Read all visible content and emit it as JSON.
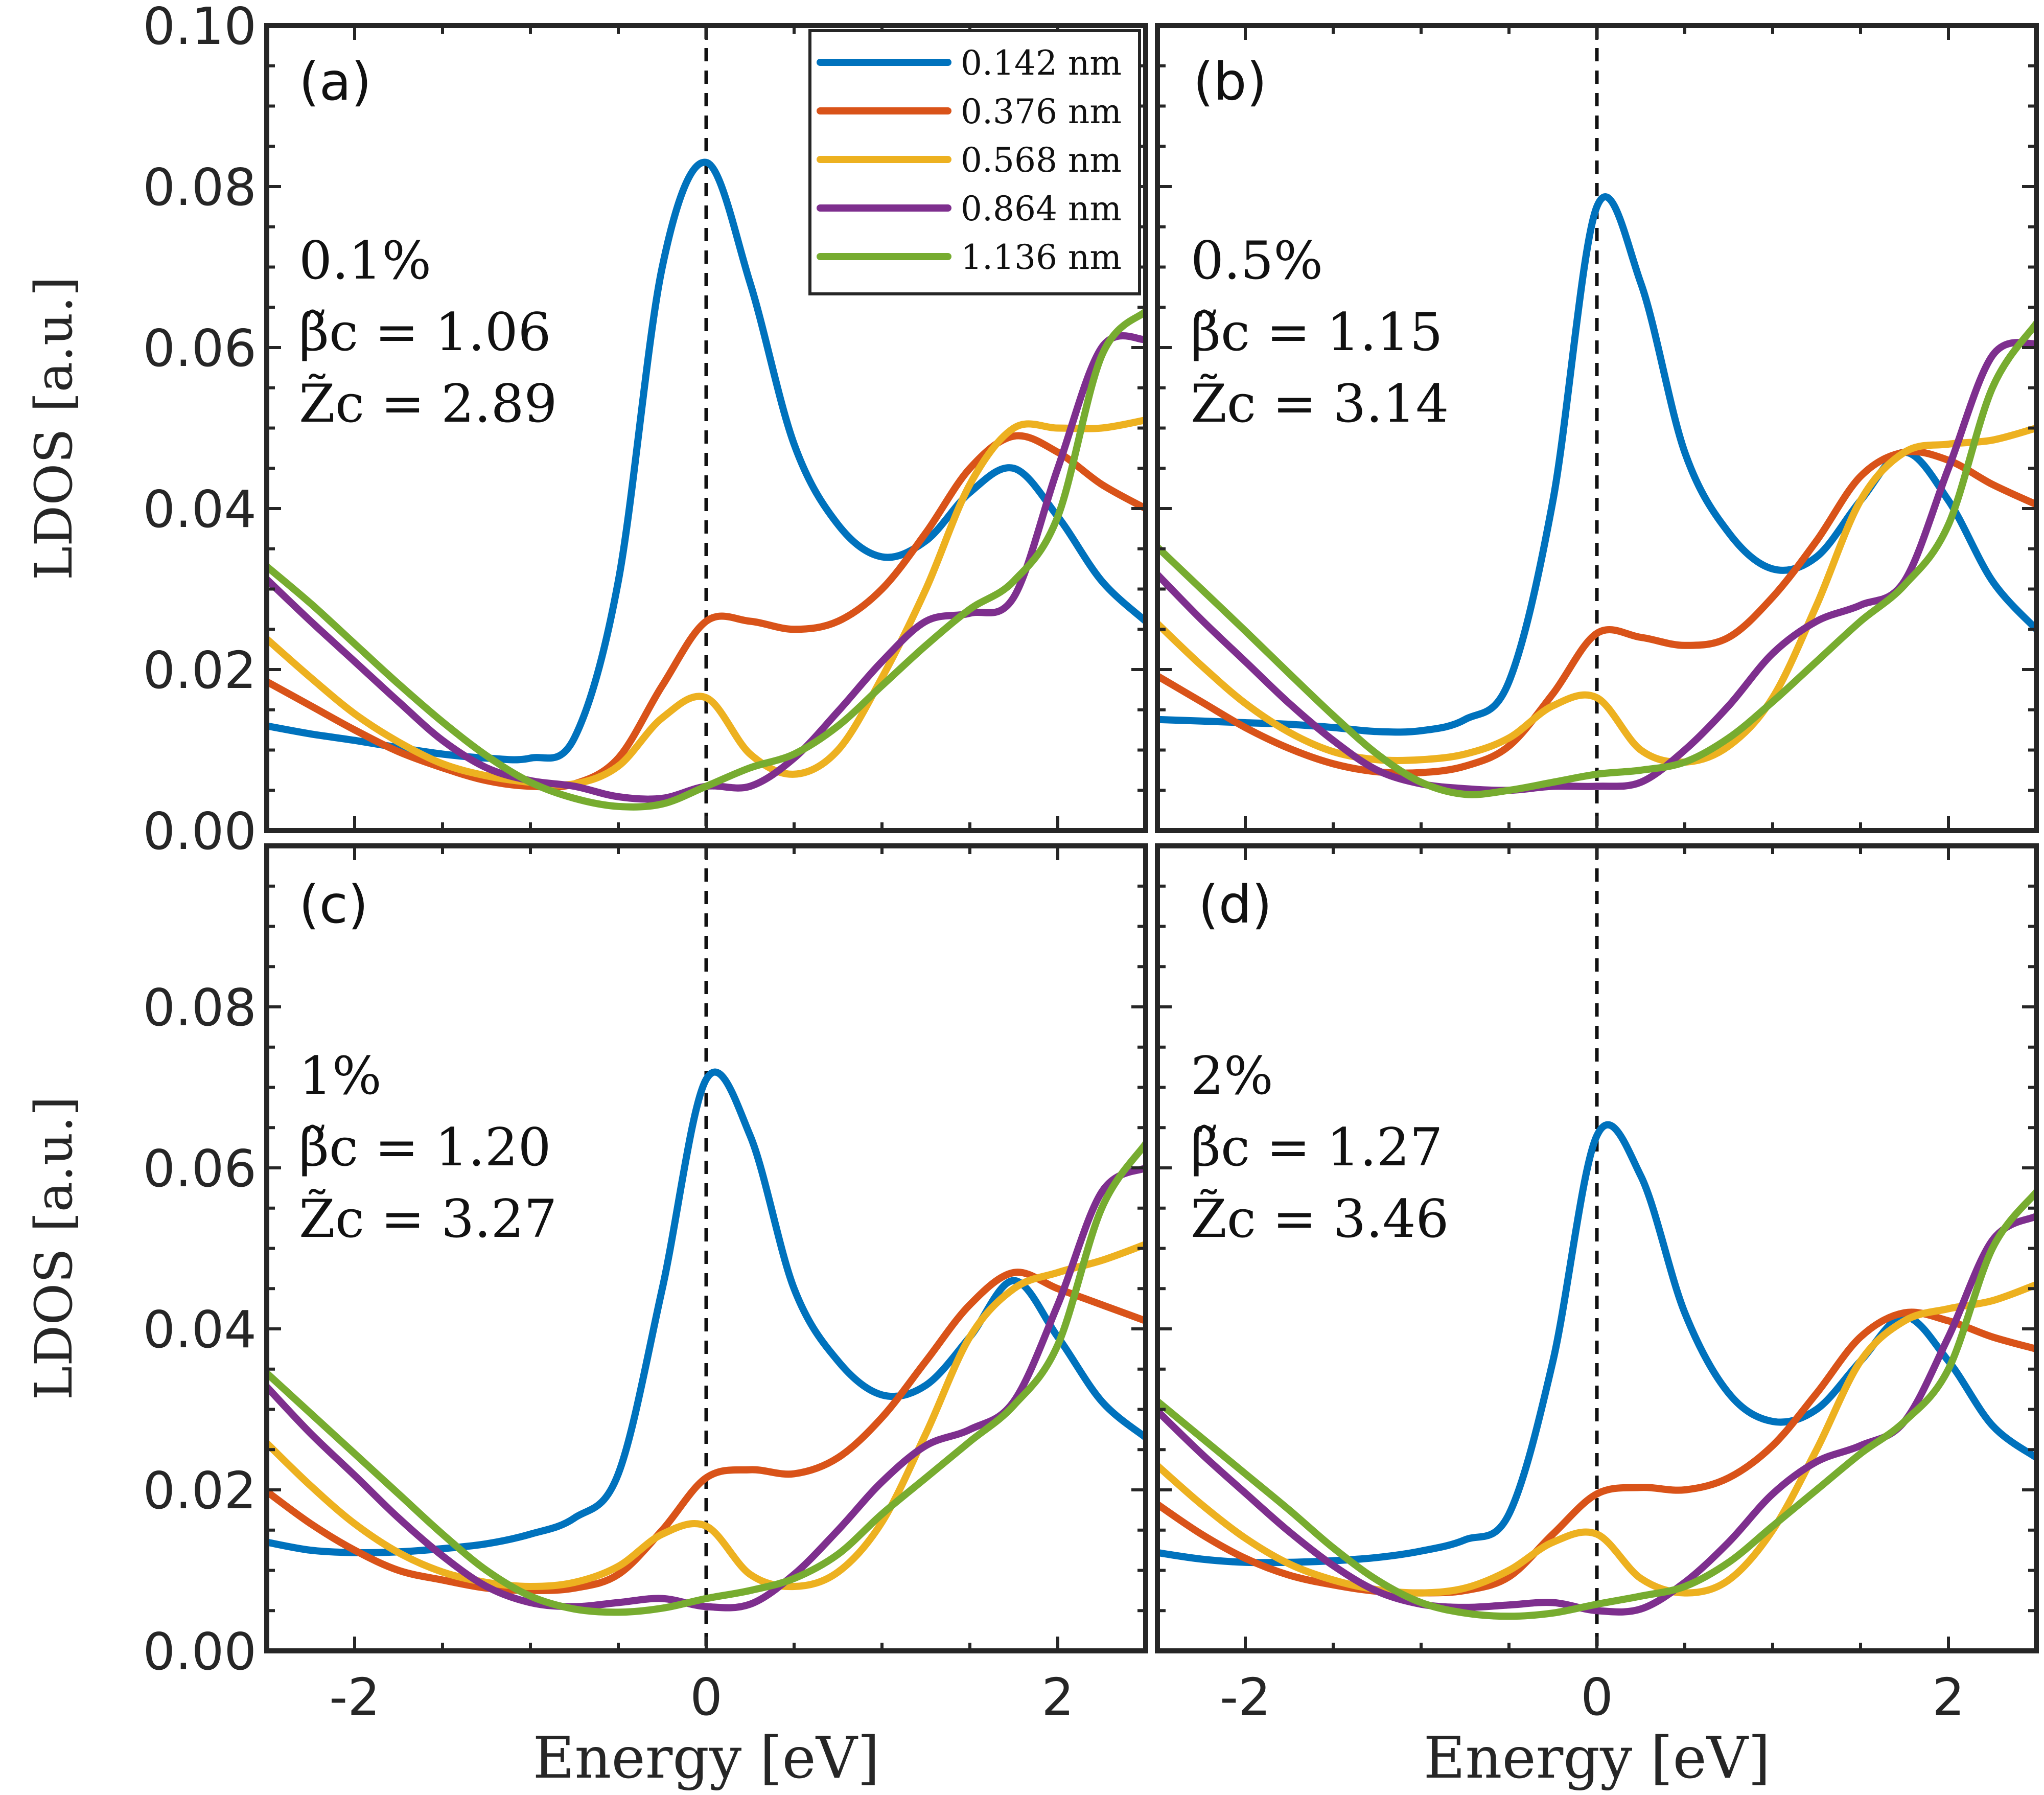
{
  "chart_data": {
    "type": "line",
    "layout": "2x2 grid",
    "ylabel": "LDOS [a.u.]",
    "xlabel": "Energy [eV]",
    "xlim": [
      -2.5,
      2.5
    ],
    "ylim": [
      0.0,
      0.1
    ],
    "xticks": [
      -2,
      0,
      2
    ],
    "xtick_labels": [
      "-2",
      "0",
      "2"
    ],
    "yticks_top": [
      0.0,
      0.02,
      0.04,
      0.06,
      0.08,
      0.1
    ],
    "ytick_labels_top": [
      "0.00",
      "0.02",
      "0.04",
      "0.06",
      "0.08",
      "0.10"
    ],
    "yticks_bottom": [
      0.0,
      0.02,
      0.04,
      0.06,
      0.08
    ],
    "ytick_labels_bottom": [
      "0.00",
      "0.02",
      "0.04",
      "0.06",
      "0.08"
    ],
    "zero_reference": "dashed vertical line at Energy = 0",
    "legend": {
      "location": "top-right of panel (a)",
      "entries": [
        {
          "label": "0.142  nm",
          "color": "#0072BD"
        },
        {
          "label": "0.376  nm",
          "color": "#D95319"
        },
        {
          "label": "0.568  nm",
          "color": "#EDB120"
        },
        {
          "label": "0.864  nm",
          "color": "#7E2F8E"
        },
        {
          "label": "1.136  nm",
          "color": "#77AC30"
        }
      ]
    },
    "x": [
      -2.5,
      -2.25,
      -2.0,
      -1.75,
      -1.5,
      -1.25,
      -1.0,
      -0.75,
      -0.5,
      -0.25,
      0.0,
      0.25,
      0.5,
      0.75,
      1.0,
      1.25,
      1.5,
      1.75,
      2.0,
      2.25,
      2.5
    ],
    "panels": [
      {
        "tag": "(a)",
        "strain": "0.1%",
        "beta_line": "β̃c = 1.06",
        "z_line": "Z̃c = 2.89",
        "series": [
          {
            "name": "0.142 nm",
            "values": [
              0.013,
              0.012,
              0.0112,
              0.0103,
              0.0095,
              0.009,
              0.009,
              0.0115,
              0.031,
              0.07,
              0.083,
              0.068,
              0.048,
              0.038,
              0.034,
              0.036,
              0.042,
              0.045,
              0.039,
              0.031,
              0.026
            ]
          },
          {
            "name": "0.376 nm",
            "values": [
              0.0185,
              0.0155,
              0.0125,
              0.0098,
              0.0078,
              0.0062,
              0.0055,
              0.0058,
              0.009,
              0.018,
              0.026,
              0.026,
              0.025,
              0.026,
              0.03,
              0.037,
              0.045,
              0.049,
              0.047,
              0.043,
              0.04
            ]
          },
          {
            "name": "0.568 nm",
            "values": [
              0.0238,
              0.019,
              0.0145,
              0.011,
              0.0083,
              0.0068,
              0.006,
              0.0058,
              0.008,
              0.014,
              0.0165,
              0.0095,
              0.007,
              0.01,
              0.019,
              0.03,
              0.043,
              0.05,
              0.05,
              0.05,
              0.051
            ]
          },
          {
            "name": "0.864 nm",
            "values": [
              0.0312,
              0.026,
              0.021,
              0.016,
              0.0112,
              0.0078,
              0.0062,
              0.0055,
              0.0042,
              0.004,
              0.0055,
              0.0055,
              0.009,
              0.0148,
              0.021,
              0.026,
              0.027,
              0.029,
              0.045,
              0.06,
              0.061
            ]
          },
          {
            "name": "1.136 nm",
            "values": [
              0.0328,
              0.0282,
              0.0232,
              0.0182,
              0.0135,
              0.0093,
              0.006,
              0.004,
              0.003,
              0.0033,
              0.0055,
              0.0078,
              0.0095,
              0.013,
              0.018,
              0.023,
              0.0275,
              0.031,
              0.039,
              0.059,
              0.0645
            ]
          }
        ]
      },
      {
        "tag": "(b)",
        "strain": "0.5%",
        "beta_line": "β̃c = 1.15",
        "z_line": "Z̃c = 3.14",
        "series": [
          {
            "name": "0.142 nm",
            "values": [
              0.0138,
              0.0136,
              0.0134,
              0.0132,
              0.0128,
              0.0123,
              0.0124,
              0.0138,
              0.0185,
              0.041,
              0.0775,
              0.068,
              0.047,
              0.037,
              0.0325,
              0.034,
              0.041,
              0.047,
              0.041,
              0.031,
              0.025
            ]
          },
          {
            "name": "0.376 nm",
            "values": [
              0.0192,
              0.016,
              0.0128,
              0.0102,
              0.0083,
              0.0073,
              0.0072,
              0.008,
              0.0105,
              0.017,
              0.0245,
              0.024,
              0.023,
              0.024,
              0.029,
              0.036,
              0.044,
              0.047,
              0.046,
              0.043,
              0.0405
            ]
          },
          {
            "name": "0.568 nm",
            "values": [
              0.0257,
              0.0205,
              0.0158,
              0.0122,
              0.0098,
              0.0088,
              0.0088,
              0.0095,
              0.0115,
              0.0155,
              0.0165,
              0.01,
              0.0085,
              0.0105,
              0.0165,
              0.028,
              0.041,
              0.047,
              0.048,
              0.0485,
              0.05
            ]
          },
          {
            "name": "0.864 nm",
            "values": [
              0.0318,
              0.0262,
              0.021,
              0.0158,
              0.0112,
              0.0075,
              0.0058,
              0.0052,
              0.005,
              0.0055,
              0.0055,
              0.006,
              0.01,
              0.0155,
              0.022,
              0.026,
              0.028,
              0.031,
              0.045,
              0.059,
              0.0605
            ]
          },
          {
            "name": "1.136 nm",
            "values": [
              0.0352,
              0.03,
              0.0248,
              0.0195,
              0.0143,
              0.0095,
              0.006,
              0.0045,
              0.005,
              0.006,
              0.007,
              0.0075,
              0.0085,
              0.0115,
              0.016,
              0.021,
              0.026,
              0.0305,
              0.038,
              0.055,
              0.063
            ]
          }
        ]
      },
      {
        "tag": "(c)",
        "strain": "1%",
        "beta_line": "β̃c = 1.20",
        "z_line": "Z̃c = 3.27",
        "series": [
          {
            "name": "0.142 nm",
            "values": [
              0.0135,
              0.0125,
              0.0122,
              0.0123,
              0.0127,
              0.0133,
              0.0145,
              0.0165,
              0.022,
              0.045,
              0.071,
              0.064,
              0.045,
              0.036,
              0.0318,
              0.033,
              0.039,
              0.046,
              0.039,
              0.031,
              0.0265
            ]
          },
          {
            "name": "0.376 nm",
            "values": [
              0.0198,
              0.0158,
              0.0125,
              0.01,
              0.0088,
              0.0078,
              0.0075,
              0.0078,
              0.0095,
              0.015,
              0.0215,
              0.0225,
              0.022,
              0.024,
              0.029,
              0.036,
              0.043,
              0.047,
              0.045,
              0.043,
              0.041
            ]
          },
          {
            "name": "0.568 nm",
            "values": [
              0.0258,
              0.0205,
              0.0158,
              0.0122,
              0.0098,
              0.0085,
              0.008,
              0.0085,
              0.0105,
              0.0145,
              0.0155,
              0.0095,
              0.008,
              0.0098,
              0.016,
              0.027,
              0.039,
              0.045,
              0.047,
              0.0485,
              0.0505
            ]
          },
          {
            "name": "0.864 nm",
            "values": [
              0.0328,
              0.027,
              0.0218,
              0.0165,
              0.0118,
              0.008,
              0.006,
              0.0055,
              0.006,
              0.0065,
              0.0055,
              0.0058,
              0.0095,
              0.015,
              0.021,
              0.0255,
              0.0275,
              0.031,
              0.043,
              0.057,
              0.06
            ]
          },
          {
            "name": "1.136 nm",
            "values": [
              0.0345,
              0.0295,
              0.0245,
              0.0195,
              0.0145,
              0.01,
              0.0068,
              0.0052,
              0.0048,
              0.0053,
              0.0065,
              0.0075,
              0.009,
              0.012,
              0.017,
              0.0215,
              0.026,
              0.0305,
              0.038,
              0.055,
              0.063
            ]
          }
        ]
      },
      {
        "tag": "(d)",
        "strain": "2%",
        "beta_line": "β̃c = 1.27",
        "z_line": "Z̃c = 3.46",
        "series": [
          {
            "name": "0.142 nm",
            "values": [
              0.0122,
              0.0114,
              0.011,
              0.011,
              0.0112,
              0.0116,
              0.0124,
              0.0138,
              0.017,
              0.036,
              0.064,
              0.059,
              0.042,
              0.032,
              0.0285,
              0.03,
              0.036,
              0.0415,
              0.036,
              0.028,
              0.024
            ]
          },
          {
            "name": "0.376 nm",
            "values": [
              0.0182,
              0.0145,
              0.0115,
              0.0094,
              0.0082,
              0.0074,
              0.0072,
              0.0075,
              0.0092,
              0.0145,
              0.0195,
              0.0203,
              0.02,
              0.0215,
              0.0255,
              0.032,
              0.039,
              0.042,
              0.041,
              0.039,
              0.0375
            ]
          },
          {
            "name": "0.568 nm",
            "values": [
              0.023,
              0.0182,
              0.014,
              0.0108,
              0.0088,
              0.0076,
              0.0072,
              0.0078,
              0.01,
              0.0135,
              0.0145,
              0.009,
              0.0072,
              0.0088,
              0.015,
              0.025,
              0.036,
              0.041,
              0.0425,
              0.0435,
              0.0455
            ]
          },
          {
            "name": "0.864 nm",
            "values": [
              0.0298,
              0.0245,
              0.0196,
              0.0148,
              0.0106,
              0.0074,
              0.0058,
              0.0054,
              0.0057,
              0.006,
              0.005,
              0.0052,
              0.0085,
              0.0135,
              0.0195,
              0.0235,
              0.0255,
              0.0285,
              0.039,
              0.051,
              0.054
            ]
          },
          {
            "name": "1.136 nm",
            "values": [
              0.031,
              0.0265,
              0.022,
              0.0175,
              0.0128,
              0.0088,
              0.006,
              0.0047,
              0.0043,
              0.0047,
              0.0058,
              0.0068,
              0.008,
              0.011,
              0.0155,
              0.02,
              0.0245,
              0.0285,
              0.035,
              0.05,
              0.057
            ]
          }
        ]
      }
    ]
  }
}
